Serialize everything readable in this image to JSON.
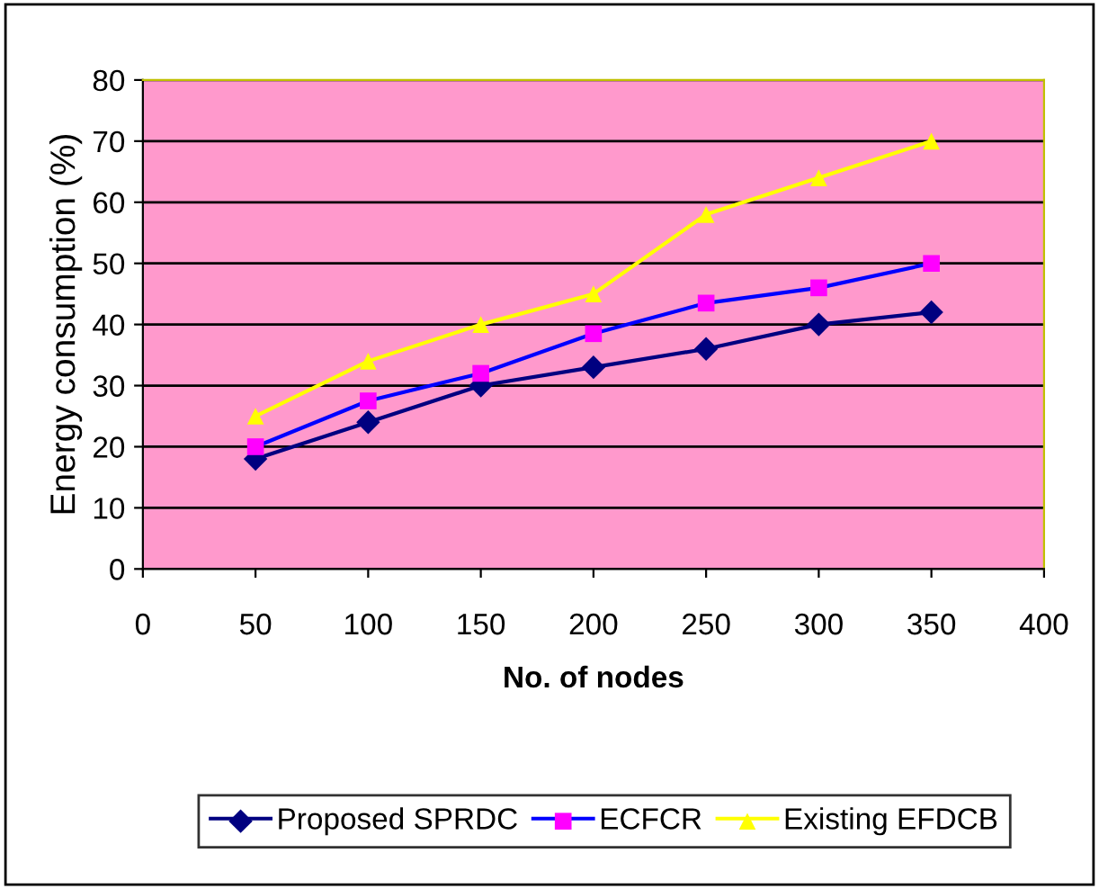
{
  "chart_data": {
    "type": "line",
    "xlabel": "No. of nodes",
    "ylabel": "Energy consumption (%)",
    "x": [
      50,
      100,
      150,
      200,
      250,
      300,
      350
    ],
    "series": [
      {
        "name": "Proposed SPRDC",
        "color": "#000080",
        "marker": "diamond",
        "values": [
          18,
          24,
          30,
          33,
          36,
          40,
          42
        ]
      },
      {
        "name": "ECFCR",
        "color": "#0000ff",
        "colors": [
          "#ff00ff",
          "#ff00ff",
          "#ff00ff",
          "#ff00ff",
          "#ff00ff",
          "#ff00ff",
          "#ff00ff"
        ],
        "marker": "square",
        "values": [
          20,
          27.5,
          32,
          38.5,
          43.5,
          46,
          50
        ]
      },
      {
        "name": "Existing EFDCB",
        "color": "#ffff00",
        "marker": "triangle",
        "values": [
          25,
          34,
          40,
          45,
          58,
          64,
          70
        ]
      }
    ],
    "xlim": [
      0,
      400
    ],
    "xticks": [
      0,
      50,
      100,
      150,
      200,
      250,
      300,
      350,
      400
    ],
    "ylim": [
      0,
      80
    ],
    "yticks": [
      0,
      10,
      20,
      30,
      40,
      50,
      60,
      70,
      80
    ],
    "grid": "y",
    "legend": "bottom",
    "line_style": "solid"
  }
}
